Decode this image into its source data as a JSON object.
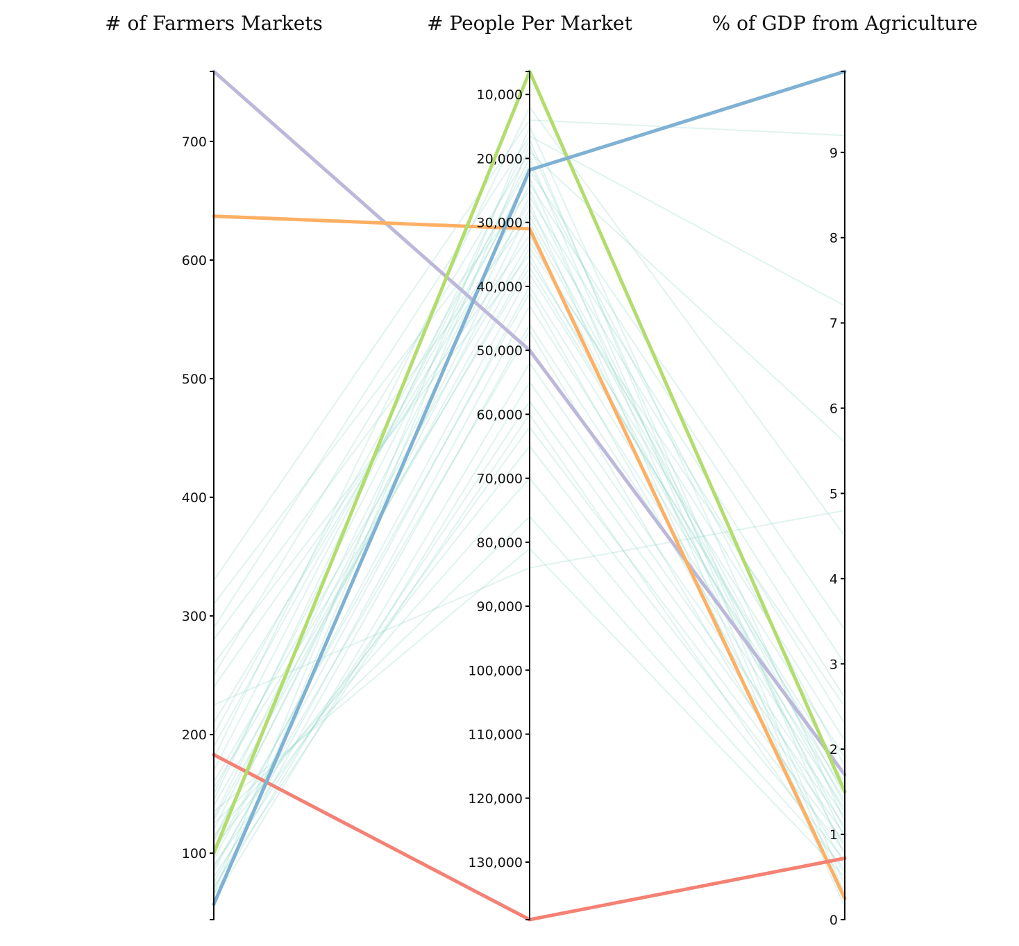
{
  "chart_data": {
    "type": "parallel-coordinates",
    "axes": [
      {
        "title": "# of Farmers Markets",
        "domain": [
          44,
          759
        ],
        "ticks": [
          100,
          200,
          300,
          400,
          500,
          600,
          700
        ],
        "tick_labels": [
          "100",
          "200",
          "300",
          "400",
          "500",
          "600",
          "700"
        ]
      },
      {
        "title": "# People Per Market",
        "domain": [
          6400,
          139000
        ],
        "ticks": [
          10000,
          20000,
          30000,
          40000,
          50000,
          60000,
          70000,
          80000,
          90000,
          100000,
          110000,
          120000,
          130000
        ],
        "tick_labels": [
          "10,000",
          "20,000",
          "30,000",
          "40,000",
          "50,000",
          "60,000",
          "70,000",
          "80,000",
          "90,000",
          "100,000",
          "110,000",
          "120,000",
          "130,000"
        ]
      },
      {
        "title": "% of GDP from Agriculture",
        "domain": [
          0,
          9.95
        ],
        "ticks": [
          0,
          1,
          2,
          3,
          4,
          5,
          6,
          7,
          8,
          9
        ],
        "tick_labels": [
          "0",
          "1",
          "2",
          "3",
          "4",
          "5",
          "6",
          "7",
          "8",
          "9"
        ]
      }
    ],
    "highlighted": [
      {
        "color": "#bcb8da",
        "values": [
          759,
          50000,
          1.7
        ]
      },
      {
        "color": "#fdb064",
        "values": [
          637,
          31000,
          0.25
        ]
      },
      {
        "color": "#f48174",
        "values": [
          183,
          139000,
          0.72
        ]
      },
      {
        "color": "#b2dd6d",
        "values": [
          100,
          6400,
          1.5
        ]
      },
      {
        "color": "#7fb1d3",
        "values": [
          57,
          21800,
          9.95
        ]
      }
    ],
    "background_color": "#8dd3c7",
    "background": [
      [
        330,
        14000,
        9.2
      ],
      [
        290,
        16500,
        7.2
      ],
      [
        250,
        19000,
        5.6
      ],
      [
        225,
        84000,
        4.8
      ],
      [
        180,
        12000,
        4.5
      ],
      [
        150,
        22000,
        3.4
      ],
      [
        130,
        24000,
        3.0
      ],
      [
        120,
        26000,
        2.6
      ],
      [
        110,
        28000,
        2.3
      ],
      [
        160,
        33000,
        2.1
      ],
      [
        140,
        36000,
        1.9
      ],
      [
        95,
        38000,
        1.7
      ],
      [
        85,
        40000,
        1.5
      ],
      [
        75,
        43000,
        1.4
      ],
      [
        70,
        46000,
        1.3
      ],
      [
        65,
        52000,
        1.2
      ],
      [
        60,
        55000,
        1.1
      ],
      [
        80,
        58000,
        1.0
      ],
      [
        90,
        62000,
        0.9
      ],
      [
        105,
        65000,
        0.8
      ],
      [
        115,
        70000,
        0.7
      ],
      [
        125,
        76000,
        0.6
      ],
      [
        135,
        81000,
        0.5
      ],
      [
        145,
        17000,
        0.4
      ],
      [
        170,
        20000,
        0.3
      ],
      [
        190,
        23000,
        0.2
      ],
      [
        210,
        27000,
        0.15
      ],
      [
        240,
        32000,
        1.05
      ],
      [
        260,
        35000,
        1.25
      ],
      [
        280,
        29000,
        1.45
      ],
      [
        310,
        25000,
        0.95
      ],
      [
        100,
        41000,
        0.85
      ],
      [
        88,
        47000,
        0.65
      ],
      [
        72,
        60000,
        0.55
      ],
      [
        66,
        15000,
        1.15
      ],
      [
        58,
        18000,
        0.75
      ],
      [
        112,
        30000,
        1.35
      ],
      [
        128,
        34000,
        2.5
      ],
      [
        155,
        37000,
        1.6
      ],
      [
        200,
        21000,
        1.8
      ]
    ]
  }
}
